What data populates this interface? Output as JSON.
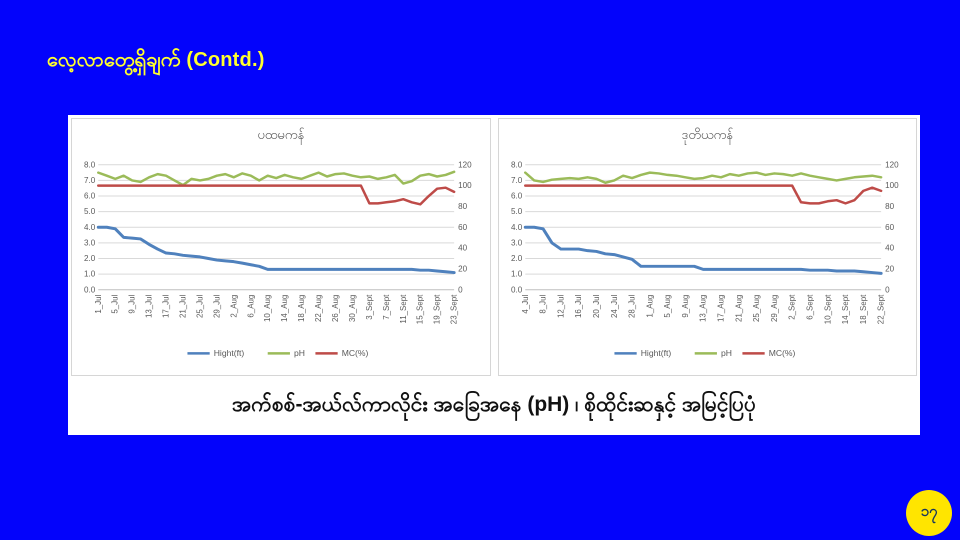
{
  "slide": {
    "title": "လေ့လာတွေ့ရှိချက် (Contd.)"
  },
  "caption": "အက်စစ်-အယ်လ်ကာလိုင်း အခြေအနေ (pH) ၊ စိုထိုင်းဆနှင့် အမြင့်ပြပုံ",
  "page_number": "၁၇",
  "colors": {
    "background": "#0303FB",
    "title_text": "#FFFF2E",
    "panel": "#FFFFFF",
    "badge": "#FFE500",
    "badge_text": "#17375E",
    "grid": "#D9D9D9",
    "axis_line": "#BFBFBF",
    "axis_label": "#595959",
    "chart_border": "#D6D6D6"
  },
  "chart_data": [
    {
      "type": "line",
      "title": "ပထမကန်",
      "grid": true,
      "legend_position": "bottom",
      "left_axis": {
        "min": 0,
        "max": 8,
        "step": 1,
        "decimals": 1
      },
      "right_axis": {
        "min": 0,
        "max": 120,
        "step": 20,
        "decimals": 0
      },
      "x_tick_labels": [
        "1_Jul",
        "5_Jul",
        "9_Jul",
        "13_Jul",
        "17_Jul",
        "21_Jul",
        "25_Jul",
        "29_Jul",
        "2_Aug",
        "6_Aug",
        "10_Aug",
        "14_Aug",
        "18_Aug",
        "22_Aug",
        "26_Aug",
        "30_Aug",
        "3_Sept",
        "7_Sept",
        "11_Sept",
        "15_Sept",
        "19_Sept",
        "23_Sept"
      ],
      "series": [
        {
          "name": "Hight(ft)",
          "axis": "left",
          "color": "#4F81BD",
          "width": 3,
          "values": [
            4.0,
            4.0,
            3.9,
            3.35,
            3.3,
            3.25,
            2.9,
            2.6,
            2.35,
            2.3,
            2.2,
            2.15,
            2.1,
            2.0,
            1.9,
            1.85,
            1.8,
            1.7,
            1.6,
            1.5,
            1.3,
            1.3,
            1.3,
            1.3,
            1.3,
            1.3,
            1.3,
            1.3,
            1.3,
            1.3,
            1.3,
            1.3,
            1.3,
            1.3,
            1.3,
            1.3,
            1.3,
            1.3,
            1.25,
            1.25,
            1.2,
            1.15,
            1.1
          ]
        },
        {
          "name": "pH",
          "axis": "left",
          "color": "#9BBB59",
          "width": 2.5,
          "values": [
            7.5,
            7.3,
            7.1,
            7.3,
            7.0,
            6.9,
            7.2,
            7.4,
            7.3,
            7.0,
            6.7,
            7.1,
            7.0,
            7.1,
            7.3,
            7.4,
            7.2,
            7.45,
            7.3,
            7.0,
            7.3,
            7.15,
            7.35,
            7.2,
            7.1,
            7.3,
            7.5,
            7.25,
            7.4,
            7.45,
            7.3,
            7.2,
            7.25,
            7.1,
            7.2,
            7.35,
            6.8,
            6.95,
            7.3,
            7.4,
            7.25,
            7.35,
            7.55
          ]
        },
        {
          "name": "MC(%)",
          "axis": "right",
          "color": "#BE4B48",
          "width": 2.5,
          "values": [
            100,
            100,
            100,
            100,
            100,
            100,
            100,
            100,
            100,
            100,
            100,
            100,
            100,
            100,
            100,
            100,
            100,
            100,
            100,
            100,
            100,
            100,
            100,
            100,
            100,
            100,
            100,
            100,
            100,
            100,
            100,
            100,
            83,
            83,
            84,
            85,
            87,
            84,
            82,
            90,
            97,
            98,
            94
          ]
        }
      ]
    },
    {
      "type": "line",
      "title": "ဒုတိယကန်",
      "grid": true,
      "legend_position": "bottom",
      "left_axis": {
        "min": 0,
        "max": 8,
        "step": 1,
        "decimals": 1
      },
      "right_axis": {
        "min": 0,
        "max": 120,
        "step": 20,
        "decimals": 0
      },
      "x_tick_labels": [
        "4_Jul",
        "8_Jul",
        "12_Jul",
        "16_Jul",
        "20_Jul",
        "24_Jul",
        "28_Jul",
        "1_Aug",
        "5_Aug",
        "9_Aug",
        "13_Aug",
        "17_Aug",
        "21_Aug",
        "25_Aug",
        "29_Aug",
        "2_Sept",
        "6_Sept",
        "10_Sept",
        "14_Sept",
        "18_Sept",
        "22_Sept"
      ],
      "series": [
        {
          "name": "Hight(ft)",
          "axis": "left",
          "color": "#4F81BD",
          "width": 3,
          "values": [
            4.0,
            4.0,
            3.9,
            3.0,
            2.6,
            2.6,
            2.6,
            2.5,
            2.45,
            2.3,
            2.25,
            2.1,
            1.95,
            1.5,
            1.5,
            1.5,
            1.5,
            1.5,
            1.5,
            1.5,
            1.3,
            1.3,
            1.3,
            1.3,
            1.3,
            1.3,
            1.3,
            1.3,
            1.3,
            1.3,
            1.3,
            1.3,
            1.25,
            1.25,
            1.25,
            1.2,
            1.2,
            1.2,
            1.15,
            1.1,
            1.05
          ]
        },
        {
          "name": "pH",
          "axis": "left",
          "color": "#9BBB59",
          "width": 2.5,
          "values": [
            7.5,
            7.0,
            6.9,
            7.05,
            7.1,
            7.15,
            7.1,
            7.2,
            7.1,
            6.85,
            7.0,
            7.3,
            7.15,
            7.35,
            7.5,
            7.45,
            7.35,
            7.3,
            7.2,
            7.1,
            7.15,
            7.3,
            7.2,
            7.4,
            7.3,
            7.45,
            7.5,
            7.35,
            7.45,
            7.4,
            7.3,
            7.45,
            7.3,
            7.2,
            7.1,
            7.0,
            7.1,
            7.2,
            7.25,
            7.3,
            7.2
          ]
        },
        {
          "name": "MC(%)",
          "axis": "right",
          "color": "#BE4B48",
          "width": 2.5,
          "values": [
            100,
            100,
            100,
            100,
            100,
            100,
            100,
            100,
            100,
            100,
            100,
            100,
            100,
            100,
            100,
            100,
            100,
            100,
            100,
            100,
            100,
            100,
            100,
            100,
            100,
            100,
            100,
            100,
            100,
            100,
            100,
            84,
            83,
            83,
            85,
            86,
            83,
            86,
            95,
            98,
            95
          ]
        }
      ]
    }
  ]
}
